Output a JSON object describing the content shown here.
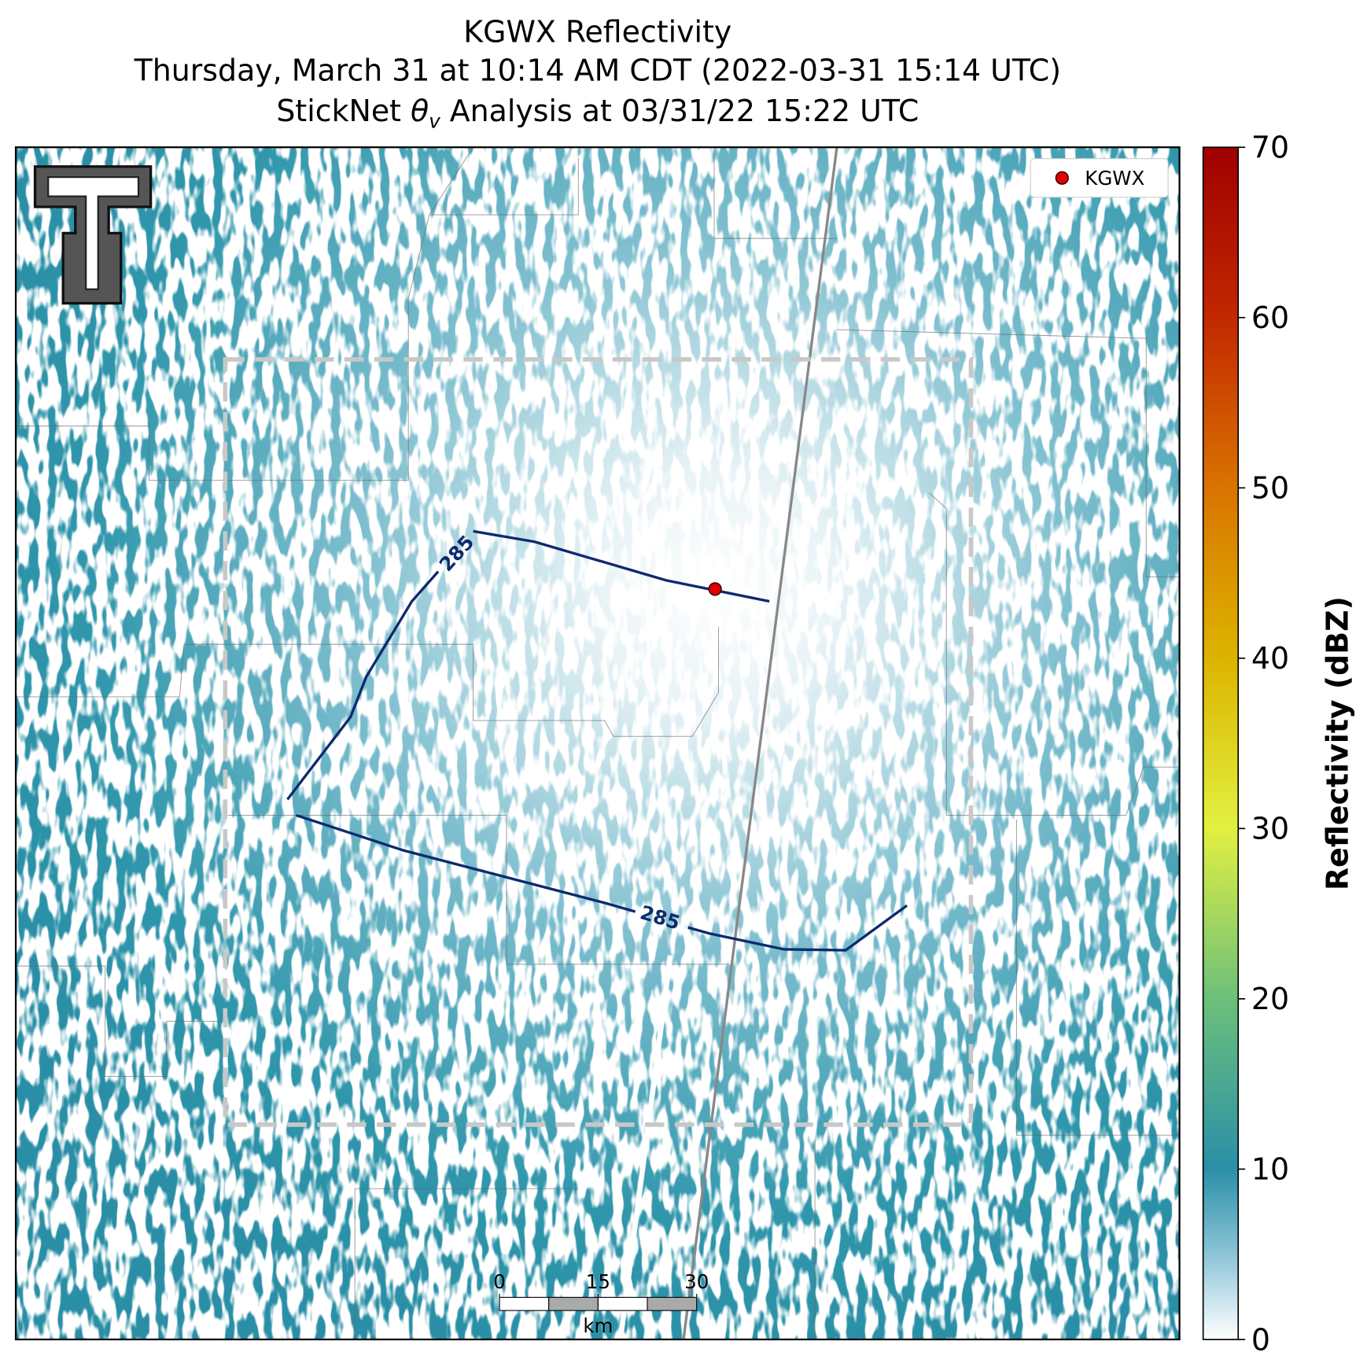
{
  "title_lines": [
    "KGWX Reflectivity",
    "Thursday, March 31 at 10:14 AM CDT (2022-03-31 15:14 UTC)"
  ],
  "analysis_title": {
    "prefix": "StickNet ",
    "symbol": "θ",
    "subscript": "v",
    "suffix": " Analysis at 03/31/22 15:22 UTC"
  },
  "legend": {
    "label": "KGWX"
  },
  "contour_labels": [
    "285",
    "285"
  ],
  "colorbar": {
    "label": "Reflectivity (dBZ)",
    "lim": [
      0,
      70
    ],
    "ticks": [
      0,
      10,
      20,
      30,
      40,
      50,
      60,
      70
    ]
  },
  "scale_bar": {
    "lim": [
      0,
      30
    ],
    "ticks": [
      0,
      15,
      30
    ],
    "unit": "km"
  }
}
